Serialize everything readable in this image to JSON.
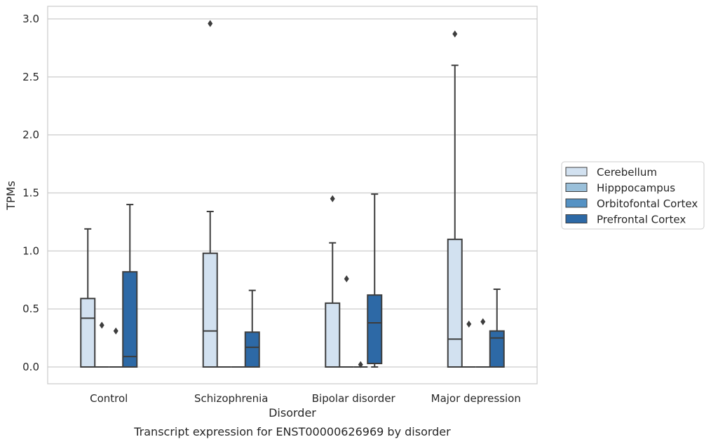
{
  "caption": "Transcript expression for ENST00000626969 by disorder",
  "chart_data": {
    "type": "box",
    "title": "",
    "xlabel": "Disorder",
    "ylabel": "TPMs",
    "ylim": [
      -0.14,
      3.11
    ],
    "yticks": [
      "0.0",
      "0.5",
      "1.0",
      "1.5",
      "2.0",
      "2.5",
      "3.0"
    ],
    "grid": "horizontal",
    "legend_position": "right",
    "categories": [
      "Control",
      "Schizophrenia",
      "Bipolar disorder",
      "Major depression"
    ],
    "series": [
      {
        "name": "Cerebellum",
        "color": "#d2e1f0",
        "boxes": [
          {
            "whislo": 0,
            "q1": 0,
            "med": 0.42,
            "q3": 0.59,
            "whishi": 1.19,
            "fliers": []
          },
          {
            "whislo": 0,
            "q1": 0,
            "med": 0.31,
            "q3": 0.98,
            "whishi": 1.34,
            "fliers": [
              2.96
            ]
          },
          {
            "whislo": 0,
            "q1": 0,
            "med": 0.0,
            "q3": 0.55,
            "whishi": 1.07,
            "fliers": [
              1.45
            ]
          },
          {
            "whislo": 0,
            "q1": 0,
            "med": 0.24,
            "q3": 1.1,
            "whishi": 2.6,
            "fliers": [
              2.87
            ]
          }
        ]
      },
      {
        "name": "Hipppocampus",
        "color": "#9ac0da",
        "boxes": [
          {
            "whislo": 0,
            "q1": 0,
            "med": 0,
            "q3": 0,
            "whishi": 0,
            "fliers": [
              0.36
            ]
          },
          {
            "whislo": 0,
            "q1": 0,
            "med": 0,
            "q3": 0,
            "whishi": 0,
            "fliers": []
          },
          {
            "whislo": 0,
            "q1": 0,
            "med": 0,
            "q3": 0,
            "whishi": 0,
            "fliers": [
              0.76
            ]
          },
          {
            "whislo": 0,
            "q1": 0,
            "med": 0,
            "q3": 0,
            "whishi": 0,
            "fliers": [
              0.37
            ]
          }
        ]
      },
      {
        "name": "Orbitofontal Cortex",
        "color": "#5592c4",
        "boxes": [
          {
            "whislo": 0,
            "q1": 0,
            "med": 0,
            "q3": 0,
            "whishi": 0,
            "fliers": [
              0.31
            ]
          },
          {
            "whislo": 0,
            "q1": 0,
            "med": 0,
            "q3": 0,
            "whishi": 0,
            "fliers": []
          },
          {
            "whislo": 0,
            "q1": 0,
            "med": 0,
            "q3": 0,
            "whishi": 0,
            "fliers": [
              0.02
            ]
          },
          {
            "whislo": 0,
            "q1": 0,
            "med": 0,
            "q3": 0,
            "whishi": 0,
            "fliers": [
              0.39
            ]
          }
        ]
      },
      {
        "name": "Prefrontal Cortex",
        "color": "#2d69a6",
        "boxes": [
          {
            "whislo": 0,
            "q1": 0,
            "med": 0.09,
            "q3": 0.82,
            "whishi": 1.4,
            "fliers": []
          },
          {
            "whislo": 0,
            "q1": 0,
            "med": 0.17,
            "q3": 0.3,
            "whishi": 0.66,
            "fliers": []
          },
          {
            "whislo": 0,
            "q1": 0.03,
            "med": 0.38,
            "q3": 0.62,
            "whishi": 1.49,
            "fliers": []
          },
          {
            "whislo": 0,
            "q1": 0,
            "med": 0.25,
            "q3": 0.31,
            "whishi": 0.67,
            "fliers": []
          }
        ]
      }
    ]
  }
}
